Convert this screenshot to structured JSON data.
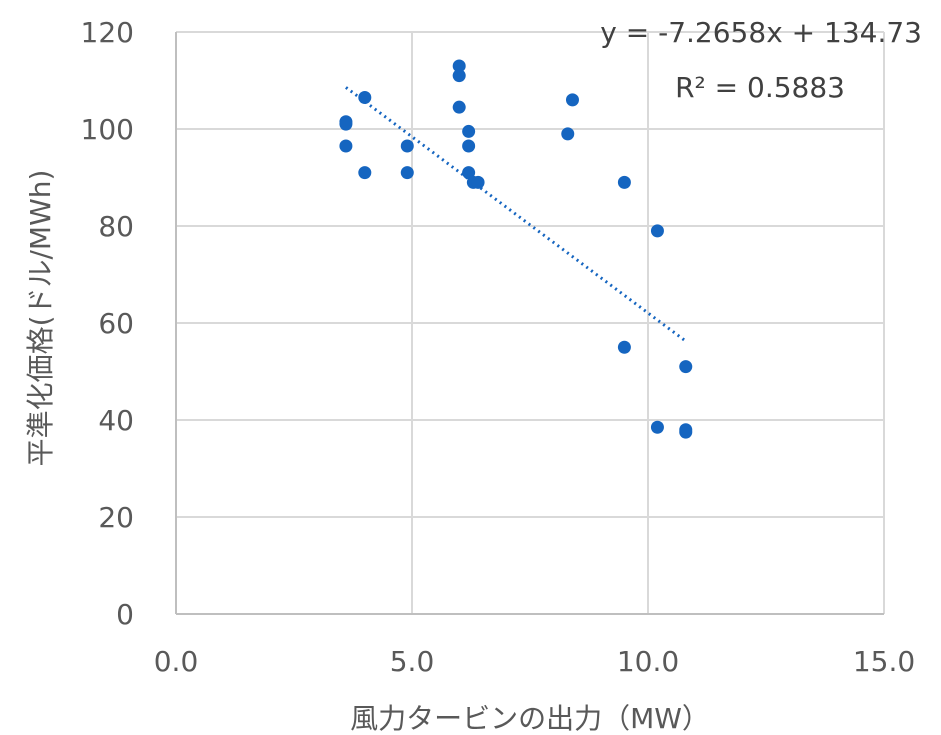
{
  "chart_data": {
    "type": "scatter",
    "xlabel": "風力タービンの出力（MW）",
    "ylabel": "平準化価格(ドル/MWh)",
    "xlim": [
      0,
      15
    ],
    "ylim": [
      0,
      120
    ],
    "x_ticks": [
      "0.0",
      "5.0",
      "10.0",
      "15.0"
    ],
    "y_ticks": [
      "0",
      "20",
      "40",
      "60",
      "80",
      "100",
      "120"
    ],
    "grid": true,
    "legend": "none",
    "marker_color": "#1565C0",
    "trendline": {
      "type": "linear",
      "style": "dotted",
      "color": "#1565C0",
      "slope": -7.2658,
      "intercept": 134.73,
      "x_range": [
        3.6,
        10.8
      ],
      "equation_label": "y = -7.2658x + 134.73",
      "r2_label": "R² = 0.5883"
    },
    "points": [
      {
        "x": 3.6,
        "y": 101.5
      },
      {
        "x": 3.6,
        "y": 101.0
      },
      {
        "x": 3.6,
        "y": 96.5
      },
      {
        "x": 4.0,
        "y": 106.5
      },
      {
        "x": 4.0,
        "y": 91.0
      },
      {
        "x": 4.9,
        "y": 96.5
      },
      {
        "x": 4.9,
        "y": 91.0
      },
      {
        "x": 6.0,
        "y": 113.0
      },
      {
        "x": 6.0,
        "y": 111.0
      },
      {
        "x": 6.0,
        "y": 104.5
      },
      {
        "x": 6.2,
        "y": 99.5
      },
      {
        "x": 6.2,
        "y": 96.5
      },
      {
        "x": 6.2,
        "y": 91.0
      },
      {
        "x": 6.3,
        "y": 89.0
      },
      {
        "x": 6.4,
        "y": 89.0
      },
      {
        "x": 8.3,
        "y": 99.0
      },
      {
        "x": 8.4,
        "y": 106.0
      },
      {
        "x": 9.5,
        "y": 89.0
      },
      {
        "x": 9.5,
        "y": 55.0
      },
      {
        "x": 10.2,
        "y": 79.0
      },
      {
        "x": 10.2,
        "y": 38.5
      },
      {
        "x": 10.8,
        "y": 51.0
      },
      {
        "x": 10.8,
        "y": 38.0
      },
      {
        "x": 10.8,
        "y": 37.5
      }
    ]
  }
}
